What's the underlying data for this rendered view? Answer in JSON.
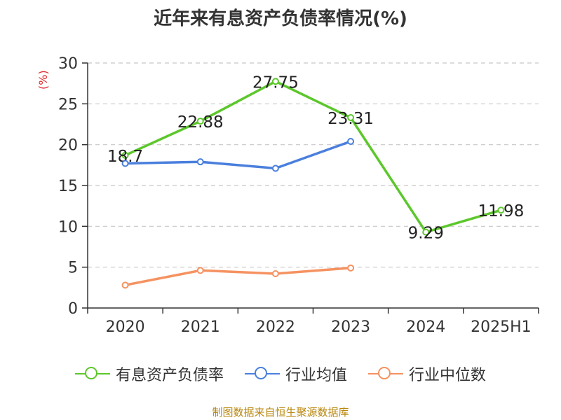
{
  "title": "近年来有息资产负债率情况(%)",
  "y_unit": "(%)",
  "source": "制图数据来自恒生聚源数据库",
  "chart_data": {
    "type": "line",
    "title": "近年来有息资产负债率情况(%)",
    "ylabel": "(%)",
    "xlabel": "",
    "ylim": [
      0,
      30
    ],
    "yticks": [
      0,
      5,
      10,
      15,
      20,
      25,
      30
    ],
    "grid": true,
    "legend_position": "bottom",
    "categories": [
      "2020",
      "2021",
      "2022",
      "2023",
      "2024",
      "2025H1"
    ],
    "series": [
      {
        "name": "有息资产负债率",
        "color": "#5cc72b",
        "values": [
          18.7,
          22.88,
          27.75,
          23.31,
          9.29,
          11.98
        ],
        "labels": [
          "18.7",
          "22.88",
          "27.75",
          "23.31",
          "9.29",
          "11.98"
        ]
      },
      {
        "name": "行业均值",
        "color": "#4a7fdd",
        "values": [
          17.7,
          17.9,
          17.1,
          20.4,
          null,
          null
        ]
      },
      {
        "name": "行业中位数",
        "color": "#f59261",
        "values": [
          2.8,
          4.6,
          4.2,
          4.9,
          null,
          null
        ]
      }
    ]
  }
}
